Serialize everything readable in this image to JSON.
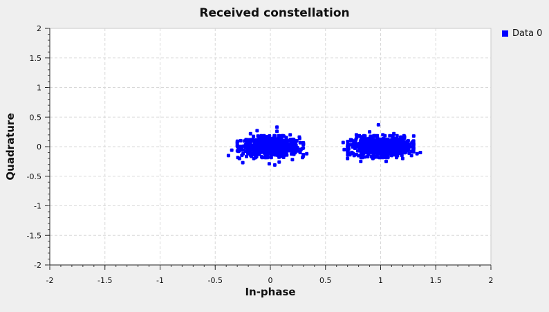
{
  "chart_data": {
    "type": "scatter",
    "title": "Received constellation",
    "xlabel": "In-phase",
    "ylabel": "Quadrature",
    "xlim": [
      -2,
      2
    ],
    "ylim": [
      -2,
      2
    ],
    "xticks": [
      "-2",
      "-1.5",
      "-1",
      "-0.5",
      "0",
      "0.5",
      "1",
      "1.5",
      "2"
    ],
    "yticks": [
      "2",
      "1.5",
      "1",
      "0.5",
      "0",
      "-0.5",
      "-1",
      "-1.5",
      "-2"
    ],
    "grid": true,
    "legend_position": "right",
    "series": [
      {
        "name": "Data 0",
        "color": "#0000ff",
        "clusters": [
          {
            "center": [
              0,
              0
            ],
            "spread": [
              0.13,
              0.08
            ]
          },
          {
            "center": [
              1,
              0
            ],
            "spread": [
              0.13,
              0.08
            ]
          }
        ],
        "points": [
          [
            -0.38,
            -0.15
          ],
          [
            -0.35,
            -0.06
          ],
          [
            -0.3,
            0.06
          ],
          [
            -0.28,
            -0.2
          ],
          [
            -0.25,
            -0.27
          ],
          [
            -0.22,
            0.12
          ],
          [
            -0.18,
            0.22
          ],
          [
            -0.15,
            -0.2
          ],
          [
            -0.12,
            0.27
          ],
          [
            -0.1,
            -0.13
          ],
          [
            -0.08,
            0.18
          ],
          [
            -0.05,
            0.1
          ],
          [
            -0.03,
            -0.05
          ],
          [
            0,
            0.02
          ],
          [
            0.02,
            -0.1
          ],
          [
            0.04,
            0.08
          ],
          [
            0.06,
            0.26
          ],
          [
            0.08,
            -0.26
          ],
          [
            0.1,
            0.15
          ],
          [
            0.12,
            -0.18
          ],
          [
            0.15,
            0.05
          ],
          [
            0.18,
            0.2
          ],
          [
            0.2,
            -0.22
          ],
          [
            0.24,
            0.1
          ],
          [
            0.27,
            -0.1
          ],
          [
            0.3,
            0.04
          ],
          [
            0.33,
            -0.12
          ],
          [
            0.04,
            -0.31
          ],
          [
            0.06,
            0.33
          ],
          [
            -0.01,
            -0.29
          ],
          [
            0.66,
            0.07
          ],
          [
            0.67,
            -0.05
          ],
          [
            0.7,
            -0.2
          ],
          [
            0.73,
            0.1
          ],
          [
            0.76,
            -0.15
          ],
          [
            0.78,
            0.2
          ],
          [
            0.82,
            -0.25
          ],
          [
            0.85,
            0.15
          ],
          [
            0.88,
            -0.1
          ],
          [
            0.9,
            0.25
          ],
          [
            0.93,
            -0.2
          ],
          [
            0.96,
            0.1
          ],
          [
            0.98,
            0.37
          ],
          [
            1,
            -0.05
          ],
          [
            1.02,
            0.2
          ],
          [
            1.05,
            -0.25
          ],
          [
            1.08,
            0.05
          ],
          [
            1.1,
            -0.15
          ],
          [
            1.12,
            0.22
          ],
          [
            1.15,
            -0.08
          ],
          [
            1.18,
            0.15
          ],
          [
            1.2,
            -0.2
          ],
          [
            1.25,
            0.1
          ],
          [
            1.28,
            -0.15
          ],
          [
            1.3,
            0.05
          ],
          [
            1.33,
            -0.12
          ],
          [
            1.3,
            0.18
          ],
          [
            1.36,
            -0.1
          ]
        ]
      }
    ]
  }
}
